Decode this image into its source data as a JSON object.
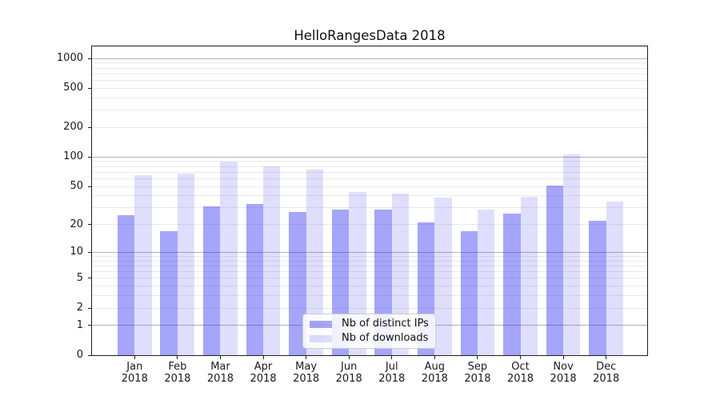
{
  "chart_data": {
    "type": "bar",
    "title": "HelloRangesData 2018",
    "categories": [
      "Jan",
      "Feb",
      "Mar",
      "Apr",
      "May",
      "Jun",
      "Jul",
      "Aug",
      "Sep",
      "Oct",
      "Nov",
      "Dec"
    ],
    "category_year": "2018",
    "series": [
      {
        "name": "Nb of distinct IPs",
        "color": "rgba(40,40,240,0.42)",
        "values": [
          25,
          17,
          31,
          33,
          27,
          29,
          29,
          21,
          17,
          26,
          51,
          22
        ]
      },
      {
        "name": "Nb of downloads",
        "color": "rgba(40,40,240,0.15)",
        "values": [
          65,
          68,
          90,
          81,
          74,
          44,
          42,
          38,
          29,
          39,
          107,
          35
        ]
      }
    ],
    "y_scale": "log10(1+v)",
    "ylim": [
      0,
      1000
    ],
    "y_ticks": [
      0,
      1,
      2,
      5,
      10,
      20,
      50,
      100,
      200,
      500,
      1000
    ],
    "major_gridlines": [
      1,
      10,
      100,
      1000
    ],
    "minor_gridlines": [
      2,
      3,
      4,
      5,
      6,
      7,
      8,
      9,
      20,
      30,
      40,
      50,
      60,
      70,
      80,
      90,
      200,
      300,
      400,
      500,
      600,
      700,
      800,
      900
    ],
    "grid": true,
    "legend_position": "lower center",
    "colors": {
      "major_grid": "#b3b3b3",
      "minor_grid": "#eaeaea",
      "spine": "#1f1f1f",
      "bar_dark_rendered": "#a9a9f8",
      "bar_light_rendered": "#dcdcfb"
    }
  }
}
